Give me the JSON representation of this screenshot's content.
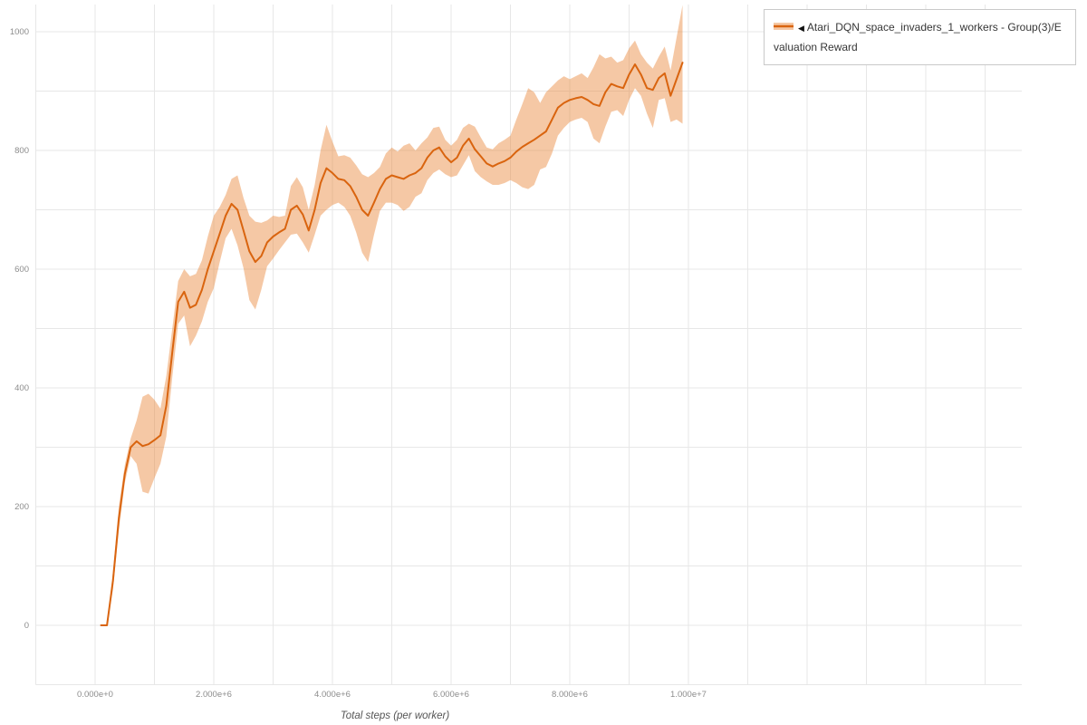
{
  "legend": {
    "marker": "◀",
    "label": "Atari_DQN_space_invaders_1_workers - Group(3)/Evaluation Reward"
  },
  "colors": {
    "line": "#d9640f",
    "band": "#e98537",
    "band_opacity": 0.45,
    "grid": "#e7e7e7",
    "tick_text": "#8c8c8c",
    "axis_label": "#555555",
    "legend_border": "#c9c9c9",
    "background": "#ffffff"
  },
  "chart_data": {
    "type": "line",
    "title": "",
    "xlabel": "Total steps (per worker)",
    "ylabel": "",
    "legend_position": "top-right-outside",
    "grid": true,
    "x_unit_note": "x values are total steps in millions (1 = 1e6 steps)",
    "xlim_millions": [
      -1,
      15.6
    ],
    "ylim": [
      -100,
      1050
    ],
    "x_ticks": [
      {
        "v": 0,
        "label": "0.000e+0"
      },
      {
        "v": 2,
        "label": "2.000e+6"
      },
      {
        "v": 4,
        "label": "4.000e+6"
      },
      {
        "v": 6,
        "label": "6.000e+6"
      },
      {
        "v": 8,
        "label": "8.000e+6"
      },
      {
        "v": 10,
        "label": "1.000e+7"
      }
    ],
    "y_ticks": [
      {
        "v": 0,
        "label": "0"
      },
      {
        "v": 200,
        "label": "200"
      },
      {
        "v": 400,
        "label": "400"
      },
      {
        "v": 600,
        "label": "600"
      },
      {
        "v": 800,
        "label": "800"
      },
      {
        "v": 1000,
        "label": "1000"
      }
    ],
    "grid_minor": {
      "x_step_millions": 1,
      "y_step": 100
    },
    "series": [
      {
        "name": "Atari_DQN_space_invaders_1_workers - Group(3)/Evaluation Reward",
        "points_format": [
          "x_millions",
          "lower",
          "mean",
          "upper"
        ],
        "points": [
          [
            0.1,
            0,
            0,
            0
          ],
          [
            0.2,
            0,
            0,
            0
          ],
          [
            0.3,
            60,
            75,
            90
          ],
          [
            0.4,
            160,
            180,
            200
          ],
          [
            0.5,
            240,
            255,
            270
          ],
          [
            0.6,
            285,
            300,
            315
          ],
          [
            0.7,
            272,
            310,
            345
          ],
          [
            0.8,
            225,
            302,
            385
          ],
          [
            0.9,
            222,
            305,
            390
          ],
          [
            1,
            248,
            312,
            380
          ],
          [
            1.1,
            272,
            320,
            365
          ],
          [
            1.2,
            318,
            370,
            420
          ],
          [
            1.3,
            418,
            460,
            500
          ],
          [
            1.4,
            508,
            545,
            580
          ],
          [
            1.5,
            522,
            562,
            600
          ],
          [
            1.6,
            470,
            535,
            588
          ],
          [
            1.7,
            488,
            540,
            592
          ],
          [
            1.8,
            512,
            565,
            615
          ],
          [
            1.9,
            545,
            600,
            655
          ],
          [
            2,
            568,
            630,
            690
          ],
          [
            2.1,
            612,
            660,
            705
          ],
          [
            2.2,
            652,
            690,
            725
          ],
          [
            2.3,
            668,
            710,
            752
          ],
          [
            2.4,
            640,
            700,
            758
          ],
          [
            2.5,
            602,
            665,
            720
          ],
          [
            2.6,
            548,
            630,
            690
          ],
          [
            2.7,
            532,
            612,
            680
          ],
          [
            2.8,
            565,
            622,
            678
          ],
          [
            2.9,
            605,
            645,
            682
          ],
          [
            3,
            618,
            655,
            690
          ],
          [
            3.1,
            632,
            662,
            688
          ],
          [
            3.2,
            645,
            668,
            690
          ],
          [
            3.3,
            658,
            700,
            740
          ],
          [
            3.4,
            660,
            707,
            755
          ],
          [
            3.5,
            645,
            692,
            738
          ],
          [
            3.6,
            628,
            665,
            700
          ],
          [
            3.7,
            658,
            700,
            742
          ],
          [
            3.8,
            690,
            745,
            800
          ],
          [
            3.9,
            700,
            770,
            843
          ],
          [
            4,
            708,
            762,
            815
          ],
          [
            4.1,
            712,
            752,
            790
          ],
          [
            4.2,
            705,
            750,
            792
          ],
          [
            4.3,
            690,
            740,
            788
          ],
          [
            4.4,
            662,
            722,
            775
          ],
          [
            4.5,
            628,
            700,
            760
          ],
          [
            4.6,
            612,
            690,
            755
          ],
          [
            4.7,
            658,
            712,
            762
          ],
          [
            4.8,
            698,
            735,
            772
          ],
          [
            4.9,
            712,
            752,
            795
          ],
          [
            5,
            712,
            758,
            805
          ],
          [
            5.1,
            708,
            755,
            798
          ],
          [
            5.2,
            698,
            752,
            808
          ],
          [
            5.3,
            705,
            758,
            812
          ],
          [
            5.4,
            722,
            762,
            800
          ],
          [
            5.5,
            728,
            770,
            812
          ],
          [
            5.6,
            750,
            788,
            822
          ],
          [
            5.7,
            762,
            800,
            838
          ],
          [
            5.8,
            768,
            805,
            840
          ],
          [
            5.9,
            760,
            790,
            818
          ],
          [
            6,
            755,
            780,
            808
          ],
          [
            6.1,
            758,
            788,
            818
          ],
          [
            6.2,
            775,
            808,
            838
          ],
          [
            6.3,
            792,
            820,
            845
          ],
          [
            6.4,
            765,
            802,
            840
          ],
          [
            6.5,
            755,
            790,
            822
          ],
          [
            6.6,
            748,
            778,
            805
          ],
          [
            6.7,
            742,
            773,
            802
          ],
          [
            6.8,
            742,
            778,
            812
          ],
          [
            6.9,
            745,
            782,
            818
          ],
          [
            7,
            750,
            788,
            825
          ],
          [
            7.1,
            745,
            798,
            852
          ],
          [
            7.2,
            738,
            806,
            878
          ],
          [
            7.3,
            735,
            812,
            905
          ],
          [
            7.4,
            742,
            818,
            898
          ],
          [
            7.5,
            768,
            825,
            880
          ],
          [
            7.6,
            772,
            832,
            898
          ],
          [
            7.7,
            795,
            852,
            908
          ],
          [
            7.8,
            825,
            872,
            918
          ],
          [
            7.9,
            838,
            880,
            925
          ],
          [
            8,
            848,
            885,
            920
          ],
          [
            8.1,
            852,
            888,
            925
          ],
          [
            8.2,
            855,
            890,
            930
          ],
          [
            8.3,
            848,
            885,
            922
          ],
          [
            8.4,
            820,
            878,
            940
          ],
          [
            8.5,
            812,
            875,
            962
          ],
          [
            8.6,
            840,
            898,
            955
          ],
          [
            8.7,
            865,
            912,
            958
          ],
          [
            8.8,
            868,
            908,
            948
          ],
          [
            8.9,
            858,
            905,
            952
          ],
          [
            9,
            885,
            928,
            972
          ],
          [
            9.1,
            905,
            945,
            985
          ],
          [
            9.2,
            892,
            928,
            962
          ],
          [
            9.3,
            862,
            905,
            948
          ],
          [
            9.4,
            838,
            902,
            938
          ],
          [
            9.5,
            885,
            922,
            958
          ],
          [
            9.6,
            888,
            930,
            975
          ],
          [
            9.7,
            848,
            892,
            935
          ],
          [
            9.8,
            852,
            920,
            990
          ],
          [
            9.9,
            845,
            948,
            1045
          ]
        ]
      }
    ]
  }
}
